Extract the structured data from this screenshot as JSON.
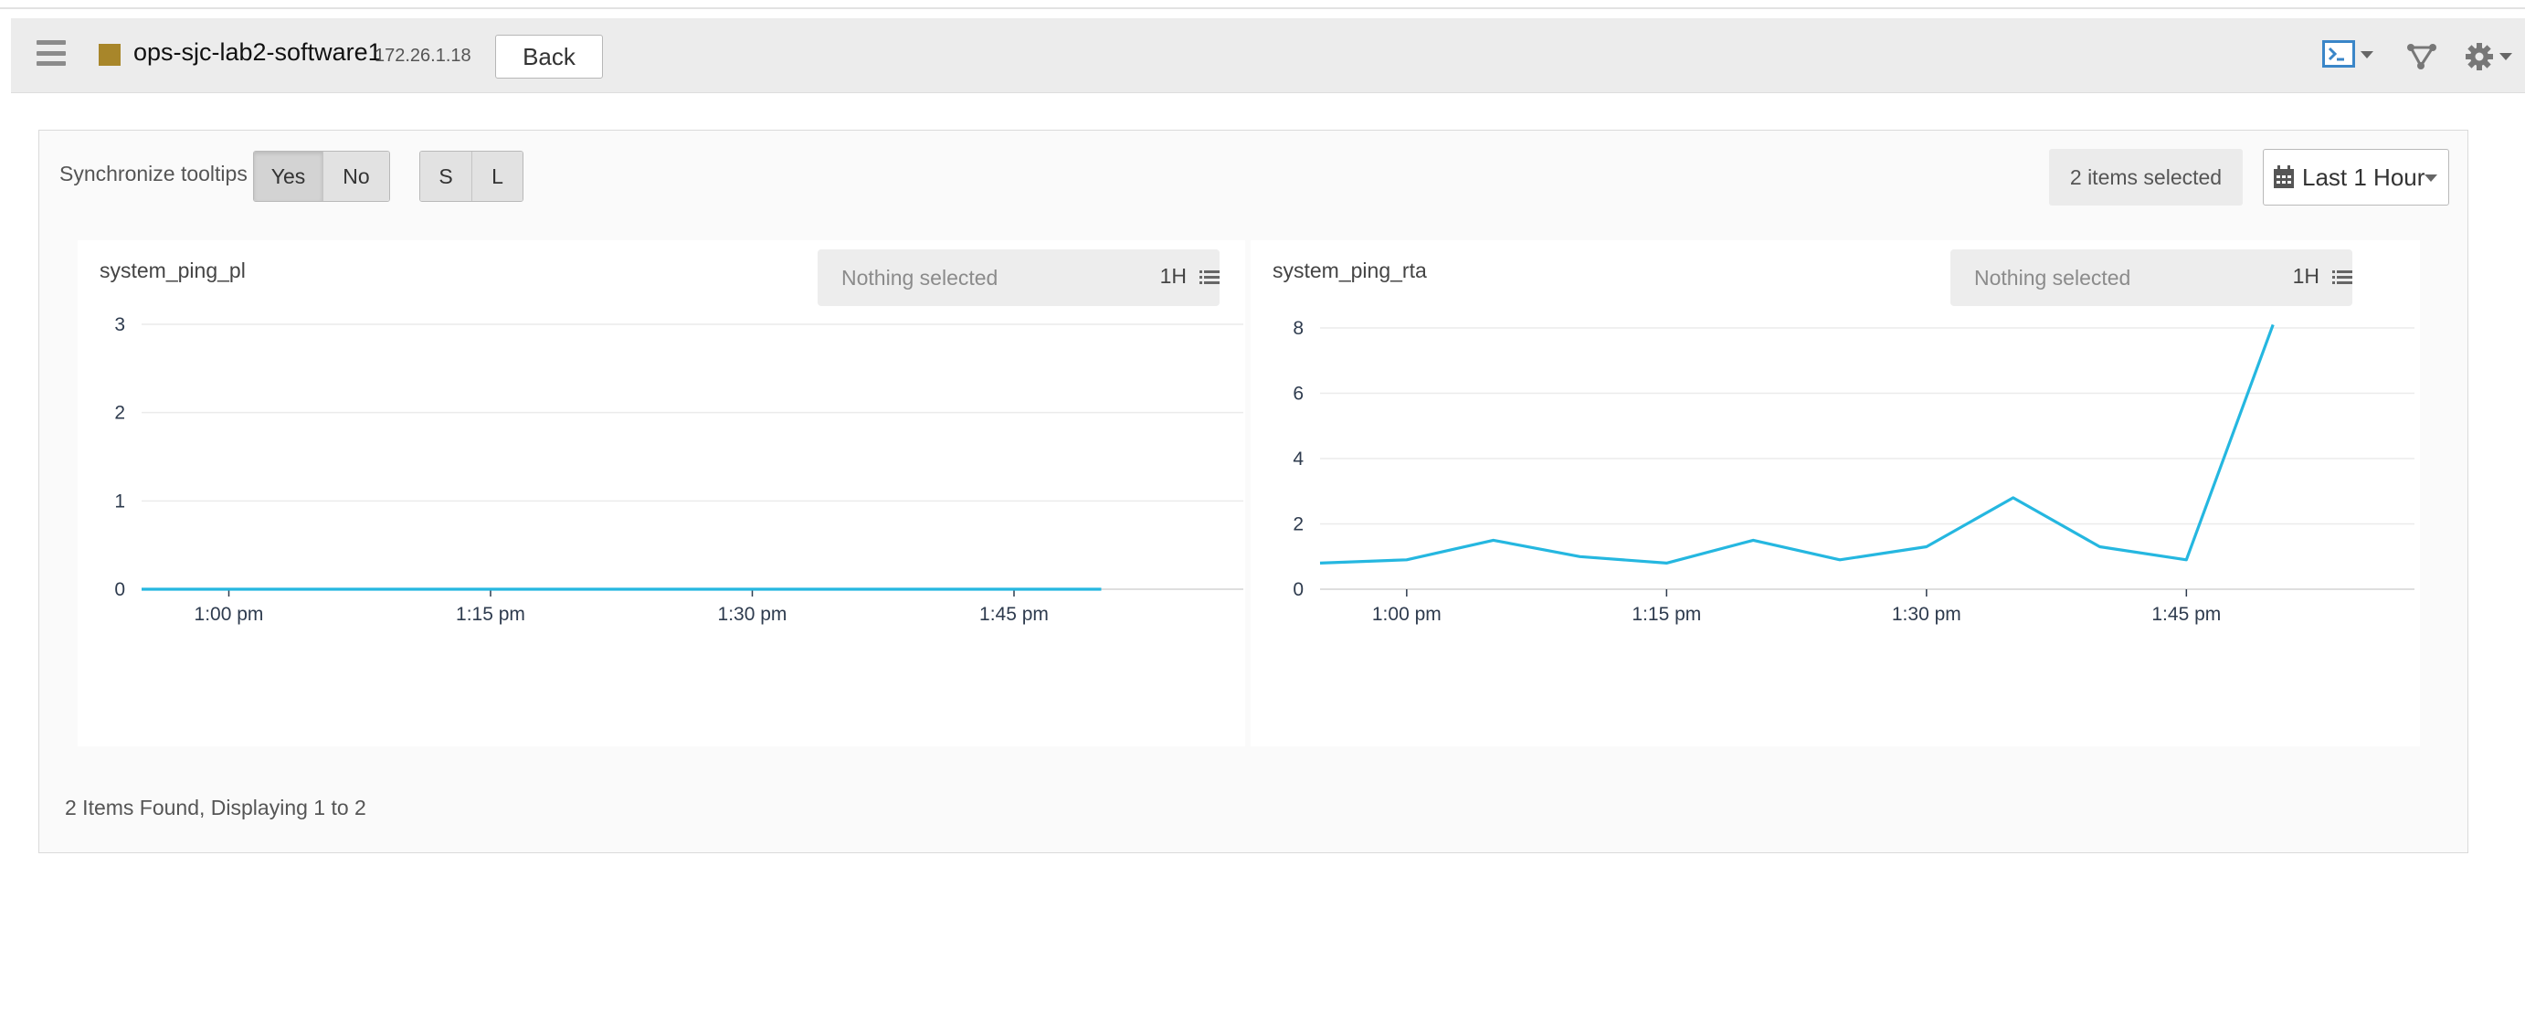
{
  "header": {
    "device_name": "ops-sjc-lab2-software1",
    "device_ip": "172.26.1.18",
    "back_label": "Back",
    "device_color": "#a8862a",
    "icons": [
      "menu-icon",
      "terminal-icon",
      "topology-icon",
      "gear-icon"
    ]
  },
  "toolbar": {
    "sync_label": "Synchronize tooltips",
    "sync_yes": "Yes",
    "sync_no": "No",
    "size_s": "S",
    "size_l": "L",
    "items_selected": "2 items selected",
    "time_range": "Last 1 Hour"
  },
  "footer": {
    "count_text": "2 Items Found, Displaying 1 to 2"
  },
  "chart_data": [
    {
      "type": "line",
      "title": "system_ping_pl",
      "selector_placeholder": "Nothing selected",
      "selector_range": "1H",
      "x_ticks": [
        "1:00 pm",
        "1:15 pm",
        "1:30 pm",
        "1:45 pm"
      ],
      "x_tick_minutes": [
        60,
        75,
        90,
        105
      ],
      "x_range_minutes": [
        55,
        115
      ],
      "y_ticks": [
        0,
        1,
        2,
        3
      ],
      "ylim": [
        0,
        3
      ],
      "grid": true,
      "line_color": "#25b7e0",
      "series": [
        {
          "x_minutes": [
            55,
            110
          ],
          "values": [
            0,
            0
          ]
        }
      ]
    },
    {
      "type": "line",
      "title": "system_ping_rta",
      "selector_placeholder": "Nothing selected",
      "selector_range": "1H",
      "x_ticks": [
        "1:00 pm",
        "1:15 pm",
        "1:30 pm",
        "1:45 pm"
      ],
      "x_tick_minutes": [
        60,
        75,
        90,
        105
      ],
      "x_range_minutes": [
        55,
        115
      ],
      "y_ticks": [
        0,
        2,
        4,
        6,
        8
      ],
      "ylim": [
        0,
        8
      ],
      "grid": true,
      "line_color": "#25b7e0",
      "series": [
        {
          "x_minutes": [
            55,
            60,
            65,
            70,
            75,
            80,
            85,
            90,
            95,
            100,
            105,
            110
          ],
          "values": [
            0.8,
            0.9,
            1.5,
            1.0,
            0.8,
            1.5,
            0.9,
            1.3,
            2.8,
            1.3,
            0.9,
            8.1
          ]
        }
      ]
    }
  ]
}
